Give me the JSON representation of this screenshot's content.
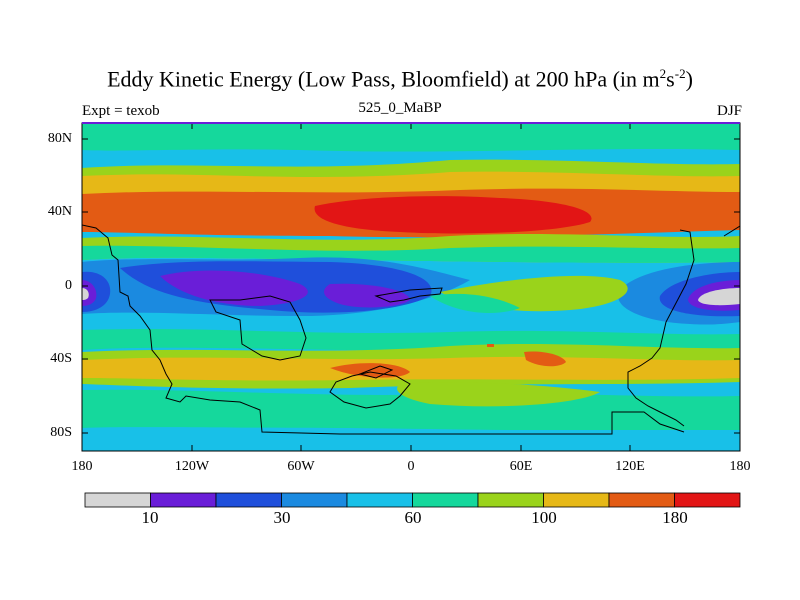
{
  "title": {
    "main": "Eddy Kinetic Energy (Low Pass, Bloomfield) at 200 hPa (in m",
    "sup1": "2",
    "mid": "s",
    "sup2": "-2",
    "end": ")"
  },
  "left_label": "Expt = texob",
  "center_label": "525_0_MaBP",
  "right_label": "DJF",
  "lat_labels": [
    "80N",
    "40N",
    "0",
    "40S",
    "80S"
  ],
  "lon_labels": [
    "180",
    "120W",
    "60W",
    "0",
    "60E",
    "120E",
    "180"
  ],
  "colorbar": {
    "colors": [
      "#d6d6d6",
      "#6a1ed8",
      "#1f4fdb",
      "#1b8ae0",
      "#18c0e8",
      "#15d89c",
      "#9ad31b",
      "#e6b817",
      "#e35b14",
      "#e21515"
    ],
    "labels": [
      "10",
      "30",
      "60",
      "100",
      "180"
    ]
  },
  "chart_data": {
    "type": "filled-contour-map",
    "title": "Eddy Kinetic Energy (Low Pass, Bloomfield) at 200 hPa (in m^2 s^-2)",
    "subtitle": "525_0_MaBP",
    "experiment": "Expt = texob",
    "season": "DJF",
    "levels": [
      10,
      20,
      30,
      45,
      60,
      80,
      100,
      140,
      180
    ],
    "x_ticks": [
      "180",
      "120W",
      "60W",
      "0",
      "60E",
      "120E",
      "180"
    ],
    "y_ticks": [
      "80N",
      "40N",
      "0",
      "40S",
      "80S"
    ],
    "xlim": [
      -180,
      180
    ],
    "ylim": [
      -90,
      90
    ]
  }
}
